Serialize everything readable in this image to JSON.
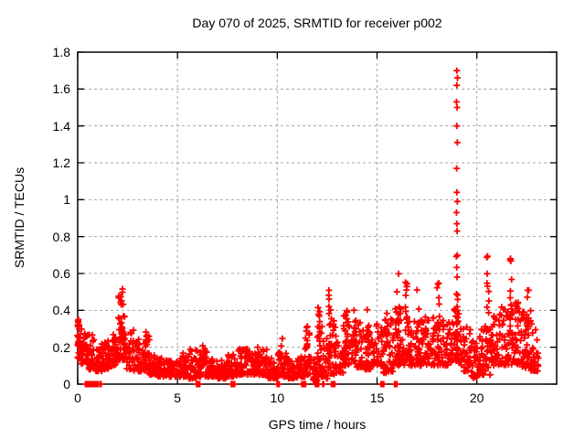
{
  "chart_data": {
    "type": "scatter",
    "title": "Day 070 of 2025, SRMTID for receiver p002",
    "xlabel": "GPS time / hours",
    "ylabel": "SRMTID / TECUs",
    "xlim": [
      0,
      24
    ],
    "ylim": [
      0,
      1.8
    ],
    "xticks": [
      {
        "v": 0,
        "label": "0"
      },
      {
        "v": 5,
        "label": "5"
      },
      {
        "v": 10,
        "label": "10"
      },
      {
        "v": 15,
        "label": "15"
      },
      {
        "v": 20,
        "label": "20"
      }
    ],
    "yticks": [
      {
        "v": 0,
        "label": "0"
      },
      {
        "v": 0.2,
        "label": "0.2"
      },
      {
        "v": 0.4,
        "label": "0.4"
      },
      {
        "v": 0.6,
        "label": "0.6"
      },
      {
        "v": 0.8,
        "label": "0.8"
      },
      {
        "v": 1.0,
        "label": "1"
      },
      {
        "v": 1.2,
        "label": "1.2"
      },
      {
        "v": 1.4,
        "label": "1.4"
      },
      {
        "v": 1.6,
        "label": "1.6"
      },
      {
        "v": 1.8,
        "label": "1.8"
      }
    ],
    "grid": "dashed",
    "legend": "none",
    "marker": {
      "shape": "plus",
      "color": "#ff0000",
      "size": 7
    },
    "style": {
      "background": "#ffffff",
      "border_color": "#000000",
      "grid_color": "#a6a6a6",
      "text_color": "#000000"
    },
    "seed": 42,
    "bands": [
      [
        0.0,
        0.15,
        0.14,
        0.4,
        20
      ],
      [
        0.15,
        0.5,
        0.11,
        0.3,
        28
      ],
      [
        0.5,
        0.9,
        0.08,
        0.27,
        34
      ],
      [
        0.9,
        1.3,
        0.07,
        0.22,
        38
      ],
      [
        1.3,
        1.7,
        0.08,
        0.24,
        38
      ],
      [
        1.7,
        2.0,
        0.1,
        0.28,
        28
      ],
      [
        2.0,
        2.4,
        0.13,
        0.48,
        40
      ],
      [
        2.4,
        2.8,
        0.08,
        0.3,
        34
      ],
      [
        2.8,
        3.2,
        0.07,
        0.25,
        34
      ],
      [
        3.2,
        3.6,
        0.06,
        0.28,
        34
      ],
      [
        3.6,
        4.0,
        0.05,
        0.16,
        34
      ],
      [
        4.0,
        4.5,
        0.04,
        0.14,
        40
      ],
      [
        4.5,
        5.0,
        0.04,
        0.13,
        40
      ],
      [
        5.0,
        5.5,
        0.04,
        0.17,
        40
      ],
      [
        5.5,
        6.0,
        0.03,
        0.19,
        40
      ],
      [
        6.0,
        6.5,
        0.04,
        0.18,
        40
      ],
      [
        6.5,
        7.0,
        0.04,
        0.14,
        40
      ],
      [
        7.0,
        7.5,
        0.03,
        0.13,
        40
      ],
      [
        7.5,
        8.0,
        0.04,
        0.16,
        40
      ],
      [
        8.0,
        8.5,
        0.05,
        0.2,
        40
      ],
      [
        8.5,
        9.0,
        0.05,
        0.18,
        40
      ],
      [
        9.0,
        9.5,
        0.05,
        0.19,
        40
      ],
      [
        9.5,
        10.0,
        0.03,
        0.15,
        40
      ],
      [
        10.0,
        10.5,
        0.04,
        0.18,
        40
      ],
      [
        10.5,
        11.0,
        0.03,
        0.14,
        40
      ],
      [
        11.0,
        11.4,
        0.04,
        0.15,
        32
      ],
      [
        11.4,
        11.7,
        0.05,
        0.28,
        26
      ],
      [
        11.7,
        12.0,
        0.02,
        0.14,
        22
      ],
      [
        12.0,
        12.3,
        0.04,
        0.32,
        26
      ],
      [
        12.3,
        12.6,
        0.03,
        0.26,
        26
      ],
      [
        12.6,
        12.9,
        0.05,
        0.36,
        26
      ],
      [
        12.9,
        13.3,
        0.06,
        0.28,
        32
      ],
      [
        13.3,
        13.7,
        0.1,
        0.38,
        32
      ],
      [
        13.7,
        14.3,
        0.09,
        0.34,
        44
      ],
      [
        14.3,
        14.8,
        0.08,
        0.32,
        38
      ],
      [
        14.8,
        15.3,
        0.1,
        0.33,
        38
      ],
      [
        15.3,
        15.8,
        0.06,
        0.36,
        38
      ],
      [
        15.8,
        16.3,
        0.1,
        0.42,
        42
      ],
      [
        16.3,
        16.8,
        0.1,
        0.38,
        40
      ],
      [
        16.8,
        17.3,
        0.1,
        0.36,
        40
      ],
      [
        17.3,
        17.8,
        0.1,
        0.38,
        40
      ],
      [
        17.8,
        18.3,
        0.1,
        0.4,
        40
      ],
      [
        18.3,
        18.8,
        0.1,
        0.36,
        40
      ],
      [
        18.8,
        19.2,
        0.12,
        0.42,
        36
      ],
      [
        19.2,
        19.7,
        0.07,
        0.32,
        40
      ],
      [
        19.7,
        20.2,
        0.03,
        0.26,
        40
      ],
      [
        20.2,
        20.7,
        0.05,
        0.35,
        40
      ],
      [
        20.7,
        21.2,
        0.1,
        0.4,
        40
      ],
      [
        21.2,
        21.7,
        0.1,
        0.42,
        40
      ],
      [
        21.7,
        22.2,
        0.1,
        0.45,
        44
      ],
      [
        22.2,
        22.7,
        0.08,
        0.4,
        44
      ],
      [
        22.7,
        23.1,
        0.07,
        0.33,
        32
      ]
    ],
    "columns": [
      [
        0.04,
        0.1,
        0.41,
        14
      ],
      [
        2.2,
        0.18,
        0.53,
        14
      ],
      [
        3.45,
        0.1,
        0.34,
        10
      ],
      [
        6.3,
        0.08,
        0.21,
        6
      ],
      [
        8.2,
        0.07,
        0.25,
        6
      ],
      [
        9.05,
        0.08,
        0.22,
        5
      ],
      [
        10.2,
        0.12,
        0.28,
        4
      ],
      [
        11.5,
        0.08,
        0.36,
        8
      ],
      [
        12.1,
        0.08,
        0.42,
        10
      ],
      [
        12.62,
        0.12,
        0.52,
        12
      ],
      [
        13.45,
        0.1,
        0.46,
        10
      ],
      [
        13.9,
        0.1,
        0.42,
        8
      ],
      [
        14.5,
        0.1,
        0.42,
        8
      ],
      [
        15.55,
        0.08,
        0.44,
        8
      ],
      [
        16.05,
        0.12,
        0.62,
        12
      ],
      [
        16.45,
        0.12,
        0.58,
        10
      ],
      [
        17.05,
        0.12,
        0.52,
        8
      ],
      [
        18.05,
        0.15,
        0.65,
        10
      ],
      [
        19.0,
        0.18,
        0.78,
        16
      ],
      [
        20.55,
        0.12,
        0.7,
        12
      ],
      [
        21.7,
        0.15,
        0.77,
        12
      ],
      [
        22.55,
        0.12,
        0.6,
        8
      ]
    ],
    "zero_runs": [
      [
        0.37,
        1.05,
        46
      ],
      [
        1.12,
        1.18,
        4
      ],
      [
        5.95,
        6.12,
        10
      ],
      [
        7.65,
        7.9,
        12
      ],
      [
        9.98,
        10.15,
        6
      ],
      [
        11.2,
        11.45,
        10
      ],
      [
        11.9,
        12.1,
        10
      ],
      [
        12.28,
        12.34,
        3
      ],
      [
        12.7,
        12.9,
        10
      ],
      [
        15.2,
        15.35,
        10
      ],
      [
        15.88,
        16.0,
        8
      ]
    ],
    "outliers": [
      [
        19.0,
        1.7
      ],
      [
        19.03,
        1.66
      ],
      [
        19.0,
        1.62
      ],
      [
        18.98,
        1.53
      ],
      [
        19.01,
        1.5
      ],
      [
        19.0,
        1.4
      ],
      [
        19.02,
        1.31
      ],
      [
        18.99,
        1.17
      ],
      [
        19.0,
        1.04
      ],
      [
        19.02,
        0.99
      ],
      [
        18.98,
        0.93
      ],
      [
        19.0,
        0.87
      ],
      [
        19.01,
        0.83
      ]
    ]
  }
}
